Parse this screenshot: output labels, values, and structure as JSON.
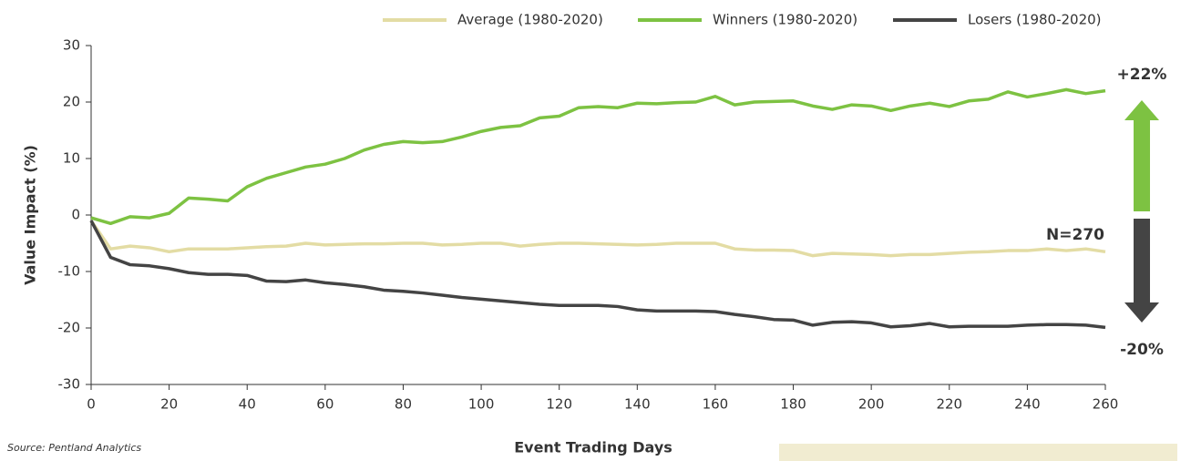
{
  "chart_data": {
    "type": "line",
    "x_label": "Event Trading Days",
    "y_label": "Value Impact (%)",
    "source": "Source: Pentland Analytics",
    "annotations": {
      "winners_end": "+22%",
      "losers_end": "-20%",
      "count": "N=270"
    },
    "x": [
      0,
      5,
      10,
      15,
      20,
      25,
      30,
      35,
      40,
      45,
      50,
      55,
      60,
      65,
      70,
      75,
      80,
      85,
      90,
      95,
      100,
      105,
      110,
      115,
      120,
      125,
      130,
      135,
      140,
      145,
      150,
      155,
      160,
      165,
      170,
      175,
      180,
      185,
      190,
      195,
      200,
      205,
      210,
      215,
      220,
      225,
      230,
      235,
      240,
      245,
      250,
      255,
      260
    ],
    "series": [
      {
        "name": "Average (1980-2020)",
        "color": "#e3dca4",
        "values": [
          -1,
          -6,
          -5.5,
          -5.8,
          -6.5,
          -6,
          -6,
          -6,
          -5.8,
          -5.6,
          -5.5,
          -5,
          -5.3,
          -5.2,
          -5.1,
          -5.1,
          -5,
          -5,
          -5.3,
          -5.2,
          -5,
          -5,
          -5.5,
          -5.2,
          -5,
          -5,
          -5.1,
          -5.2,
          -5.3,
          -5.2,
          -5,
          -5,
          -5,
          -6,
          -6.2,
          -6.2,
          -6.3,
          -7.2,
          -6.8,
          -6.9,
          -7,
          -7.2,
          -7,
          -7,
          -6.8,
          -6.6,
          -6.5,
          -6.3,
          -6.3,
          -6,
          -6.3,
          -6,
          -6.5
        ]
      },
      {
        "name": "Winners (1980-2020)",
        "color": "#7dc242",
        "values": [
          -0.5,
          -1.5,
          -0.3,
          -0.5,
          0.3,
          3,
          2.8,
          2.5,
          5,
          6.5,
          7.5,
          8.5,
          9,
          10,
          11.5,
          12.5,
          13,
          12.8,
          13,
          13.8,
          14.8,
          15.5,
          15.8,
          17.2,
          17.5,
          19,
          19.2,
          19,
          19.8,
          19.7,
          19.9,
          20,
          21,
          19.5,
          20,
          20.1,
          20.2,
          19.3,
          18.7,
          19.5,
          19.3,
          18.5,
          19.3,
          19.8,
          19.2,
          20.2,
          20.5,
          21.8,
          20.9,
          21.5,
          22.2,
          21.5,
          22
        ]
      },
      {
        "name": "Losers (1980-2020)",
        "color": "#444444",
        "values": [
          -1,
          -7.5,
          -8.8,
          -9,
          -9.5,
          -10.2,
          -10.5,
          -10.5,
          -10.7,
          -11.7,
          -11.8,
          -11.5,
          -12,
          -12.3,
          -12.7,
          -13.3,
          -13.5,
          -13.8,
          -14.2,
          -14.6,
          -14.9,
          -15.2,
          -15.5,
          -15.8,
          -16,
          -16,
          -16,
          -16.2,
          -16.8,
          -17,
          -17,
          -17,
          -17.1,
          -17.6,
          -18,
          -18.5,
          -18.6,
          -19.5,
          -19,
          -18.9,
          -19.1,
          -19.8,
          -19.6,
          -19.2,
          -19.8,
          -19.7,
          -19.7,
          -19.7,
          -19.5,
          -19.4,
          -19.4,
          -19.5,
          -19.9
        ]
      }
    ],
    "xlim": [
      0,
      260
    ],
    "xticks": [
      0,
      20,
      40,
      60,
      80,
      100,
      120,
      140,
      160,
      180,
      200,
      220,
      240,
      260
    ],
    "ylim": [
      -30,
      30
    ],
    "yticks": [
      -30,
      -20,
      -10,
      0,
      10,
      20,
      30
    ]
  }
}
